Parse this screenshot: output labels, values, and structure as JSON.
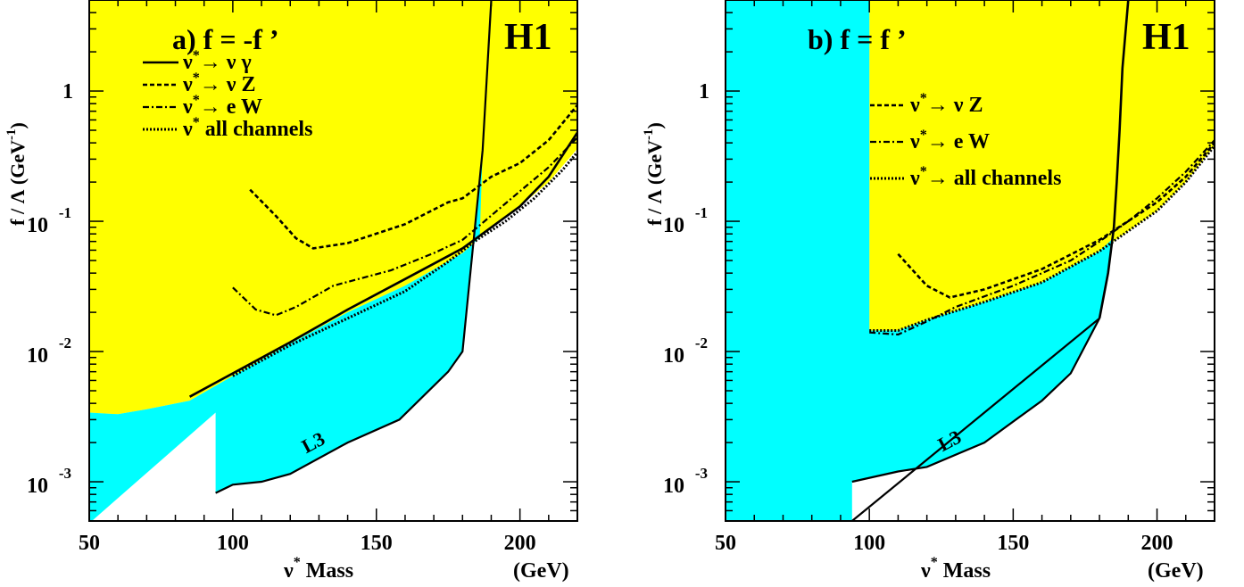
{
  "colors": {
    "excluded_h1": "#ffff00",
    "excluded_l3": "#00ffff",
    "frame": "#000000",
    "background": "#ffffff"
  },
  "chart_data": [
    {
      "type": "line",
      "panel_label": "a) f = -f ’",
      "experiment": "H1",
      "xlabel_main": "ν",
      "xlabel_sup": "*",
      "xlabel_rest": " Mass",
      "xunit": "(GeV)",
      "ylabel": "f / Λ (GeV",
      "ylabel_sup": "-1",
      "ylabel_close": ")",
      "xlim": [
        50,
        220
      ],
      "ylim": [
        0.0005,
        5
      ],
      "yscale": "log",
      "xticks": [
        50,
        100,
        150,
        200
      ],
      "yticks": [
        {
          "value": 1,
          "base": "1",
          "exp": ""
        },
        {
          "value": 0.1,
          "base": "10",
          "exp": "-1"
        },
        {
          "value": 0.01,
          "base": "10",
          "exp": "-2"
        },
        {
          "value": 0.001,
          "base": "10",
          "exp": "-3"
        }
      ],
      "l3_label": "L3",
      "regions": {
        "l3_boundary": {
          "x": [
            50,
            50,
            94,
            94,
            100,
            110,
            120,
            140,
            158,
            175,
            180,
            187,
            190
          ],
          "y": [
            0.00048,
            0.0034,
            0.0034,
            0.00082,
            0.00095,
            0.001,
            0.00115,
            0.002,
            0.003,
            0.007,
            0.01,
            0.35,
            5
          ]
        },
        "h1_boundary": {
          "x": [
            50,
            60,
            70,
            85,
            100,
            120,
            140,
            160,
            180,
            186,
            200,
            210,
            220
          ],
          "y": [
            0.0034,
            0.0033,
            0.0036,
            0.0042,
            0.0065,
            0.0115,
            0.02,
            0.032,
            0.057,
            0.075,
            0.13,
            0.2,
            0.36
          ]
        }
      },
      "legend": [
        {
          "label": "ν",
          "label_sup": "*",
          "label_rest": "→ ν γ",
          "style": "solid"
        },
        {
          "label": "ν",
          "label_sup": "*",
          "label_rest": "→ ν Z",
          "style": "dashed"
        },
        {
          "label": "ν",
          "label_sup": "*",
          "label_rest": "→ e W",
          "style": "dashdot"
        },
        {
          "label": "ν",
          "label_sup": "*",
          "label_rest": " all channels",
          "style": "hatched"
        }
      ],
      "series": [
        {
          "channel": "nu-gamma",
          "style": "solid",
          "x": [
            85,
            100,
            120,
            140,
            160,
            180,
            200,
            210,
            220
          ],
          "y": [
            0.0045,
            0.0068,
            0.0118,
            0.021,
            0.036,
            0.062,
            0.13,
            0.22,
            0.48
          ]
        },
        {
          "channel": "nu-Z",
          "style": "dashed",
          "x": [
            106,
            115,
            122,
            128,
            140,
            160,
            175,
            180,
            190,
            200,
            210,
            220
          ],
          "y": [
            0.175,
            0.11,
            0.074,
            0.062,
            0.068,
            0.095,
            0.14,
            0.15,
            0.22,
            0.28,
            0.42,
            0.78
          ]
        },
        {
          "channel": "e-W",
          "style": "dashdot",
          "x": [
            100,
            108,
            115,
            122,
            135,
            155,
            170,
            180,
            200,
            210,
            220
          ],
          "y": [
            0.031,
            0.021,
            0.019,
            0.022,
            0.032,
            0.042,
            0.057,
            0.072,
            0.17,
            0.26,
            0.44
          ]
        },
        {
          "channel": "all",
          "style": "hatched",
          "x": [
            100,
            120,
            140,
            160,
            175,
            185,
            195,
            205,
            215,
            220
          ],
          "y": [
            0.0065,
            0.0112,
            0.018,
            0.029,
            0.049,
            0.072,
            0.1,
            0.15,
            0.25,
            0.34
          ]
        }
      ]
    },
    {
      "type": "line",
      "panel_label": "b) f = f ’",
      "experiment": "H1",
      "xlabel_main": "ν",
      "xlabel_sup": "*",
      "xlabel_rest": " Mass",
      "xunit": "(GeV)",
      "ylabel": "f / Λ (GeV",
      "ylabel_sup": "-1",
      "ylabel_close": ")",
      "xlim": [
        50,
        220
      ],
      "ylim": [
        0.0005,
        5
      ],
      "yscale": "log",
      "xticks": [
        50,
        100,
        150,
        200
      ],
      "yticks": [
        {
          "value": 1,
          "base": "1",
          "exp": ""
        },
        {
          "value": 0.1,
          "base": "10",
          "exp": "-1"
        },
        {
          "value": 0.01,
          "base": "10",
          "exp": "-2"
        },
        {
          "value": 0.001,
          "base": "10",
          "exp": "-3"
        }
      ],
      "l3_label": "L3",
      "regions": {
        "l3_boundary": {
          "x": [
            50,
            50,
            94,
            94,
            110,
            120,
            140,
            160,
            170,
            180,
            186,
            190
          ],
          "y": [
            0.00048,
            5,
            5,
            0.001,
            0.0012,
            0.0013,
            0.002,
            0.0042,
            0.0068,
            0.018,
            0.1,
            5
          ]
        },
        "h1_boundary": {
          "x": [
            100,
            100,
            110,
            120,
            140,
            160,
            180,
            200,
            210,
            220
          ],
          "y": [
            5,
            0.0145,
            0.0145,
            0.0175,
            0.024,
            0.034,
            0.059,
            0.12,
            0.2,
            0.38
          ]
        }
      },
      "legend": [
        {
          "label": "ν",
          "label_sup": "*",
          "label_rest": "→ ν Z",
          "style": "dashed"
        },
        {
          "label": "ν",
          "label_sup": "*",
          "label_rest": "→ e W",
          "style": "dashdot"
        },
        {
          "label": "ν",
          "label_sup": "*",
          "label_rest": "→ all channels",
          "style": "hatched"
        }
      ],
      "series": [
        {
          "channel": "nu-Z",
          "style": "dashed",
          "x": [
            110,
            120,
            128,
            140,
            160,
            180,
            200,
            210,
            220
          ],
          "y": [
            0.056,
            0.032,
            0.026,
            0.03,
            0.043,
            0.072,
            0.14,
            0.22,
            0.4
          ]
        },
        {
          "channel": "e-W",
          "style": "dashdot",
          "x": [
            100,
            110,
            120,
            130,
            150,
            170,
            180,
            190,
            200,
            210,
            220
          ],
          "y": [
            0.014,
            0.0135,
            0.017,
            0.022,
            0.032,
            0.05,
            0.07,
            0.1,
            0.15,
            0.24,
            0.42
          ]
        },
        {
          "channel": "all",
          "style": "hatched",
          "x": [
            100,
            110,
            120,
            140,
            160,
            180,
            200,
            210,
            220
          ],
          "y": [
            0.0145,
            0.0145,
            0.0175,
            0.024,
            0.034,
            0.059,
            0.12,
            0.2,
            0.38
          ]
        },
        {
          "channel": "nu-gamma",
          "style": "solid",
          "x": [
            180,
            183,
            185,
            186,
            187,
            188,
            190
          ],
          "y": [
            0.018,
            0.04,
            0.09,
            0.2,
            0.5,
            1.5,
            5
          ]
        }
      ]
    }
  ]
}
